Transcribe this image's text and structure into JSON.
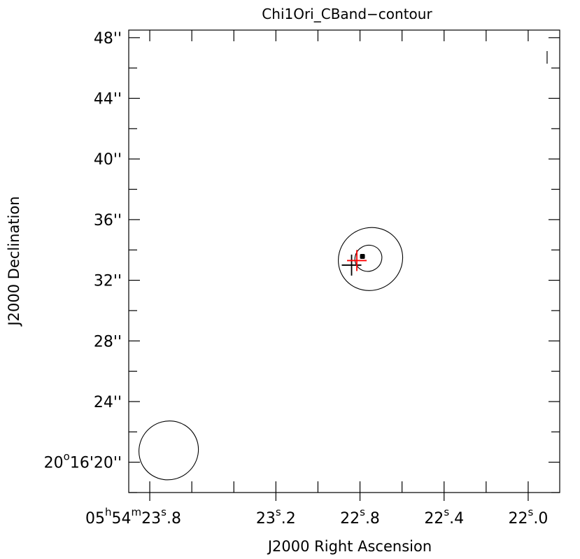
{
  "chart_data": {
    "type": "contour",
    "title": "Chi1Ori_CBand−contour",
    "xlabel": "J2000 Right Ascension",
    "ylabel": "J2000 Declination",
    "x_axis": {
      "unit": "seconds of RA (05h54m + s)",
      "range": [
        23.9,
        21.85
      ],
      "reversed": true,
      "major_ticks": [
        {
          "value": 23.8,
          "prefix": "05",
          "sup1": "h",
          "mid": "54",
          "sup2": "m",
          "mid2": "23",
          "sup3": "s",
          "suffix": ".8"
        },
        {
          "value": 23.2,
          "prefix": "",
          "sup1": "",
          "mid": "",
          "sup2": "",
          "mid2": "23",
          "sup3": "s",
          "suffix": ".2"
        },
        {
          "value": 22.8,
          "prefix": "",
          "sup1": "",
          "mid": "",
          "sup2": "",
          "mid2": "22",
          "sup3": "s",
          "suffix": ".8"
        },
        {
          "value": 22.4,
          "prefix": "",
          "sup1": "",
          "mid": "",
          "sup2": "",
          "mid2": "22",
          "sup3": "s",
          "suffix": ".4"
        },
        {
          "value": 22.0,
          "prefix": "",
          "sup1": "",
          "mid": "",
          "sup2": "",
          "mid2": "22",
          "sup3": "s",
          "suffix": ".0"
        }
      ],
      "minor_ticks": [
        23.8,
        23.6,
        23.4,
        23.2,
        23.0,
        22.8,
        22.6,
        22.4,
        22.2,
        22.0
      ]
    },
    "y_axis": {
      "unit": "arcsec (20°16' + \")",
      "range": [
        18.0,
        48.5
      ],
      "major_ticks": [
        {
          "value": 20,
          "prefix": "20",
          "sup": "o",
          "suffix": "16'20''"
        },
        {
          "value": 24,
          "prefix": "",
          "sup": "",
          "suffix": "24''"
        },
        {
          "value": 28,
          "prefix": "",
          "sup": "",
          "suffix": "28''"
        },
        {
          "value": 32,
          "prefix": "",
          "sup": "",
          "suffix": "32''"
        },
        {
          "value": 36,
          "prefix": "",
          "sup": "",
          "suffix": "36''"
        },
        {
          "value": 40,
          "prefix": "",
          "sup": "",
          "suffix": "40''"
        },
        {
          "value": 44,
          "prefix": "",
          "sup": "",
          "suffix": "44''"
        },
        {
          "value": 48,
          "prefix": "",
          "sup": "",
          "suffix": "48''"
        }
      ]
    },
    "contours": [
      {
        "level": "outer",
        "cx": 22.75,
        "cy": 33.4,
        "rx_s": 0.155,
        "ry_arcsec": 2.05,
        "angle_deg": -32
      },
      {
        "level": "middle",
        "cx": 22.76,
        "cy": 33.45,
        "rx_s": 0.065,
        "ry_arcsec": 0.85,
        "angle_deg": -30
      },
      {
        "level": "peak",
        "cx": 22.79,
        "cy": 33.55,
        "rx_s": 0.012,
        "ry_arcsec": 0.2,
        "angle_deg": 0
      }
    ],
    "beam": {
      "cx": 23.71,
      "cy": 20.78,
      "rx_s": 0.143,
      "ry_arcsec": 1.92,
      "angle_deg": -36
    },
    "markers": [
      {
        "name": "optical-position",
        "color": "#000000",
        "x": 22.84,
        "y": 33.0
      },
      {
        "name": "radio-position",
        "color": "#ff0000",
        "x": 22.815,
        "y": 33.3
      }
    ],
    "corner_mark": {
      "x": 21.91,
      "y": 46.7
    }
  }
}
